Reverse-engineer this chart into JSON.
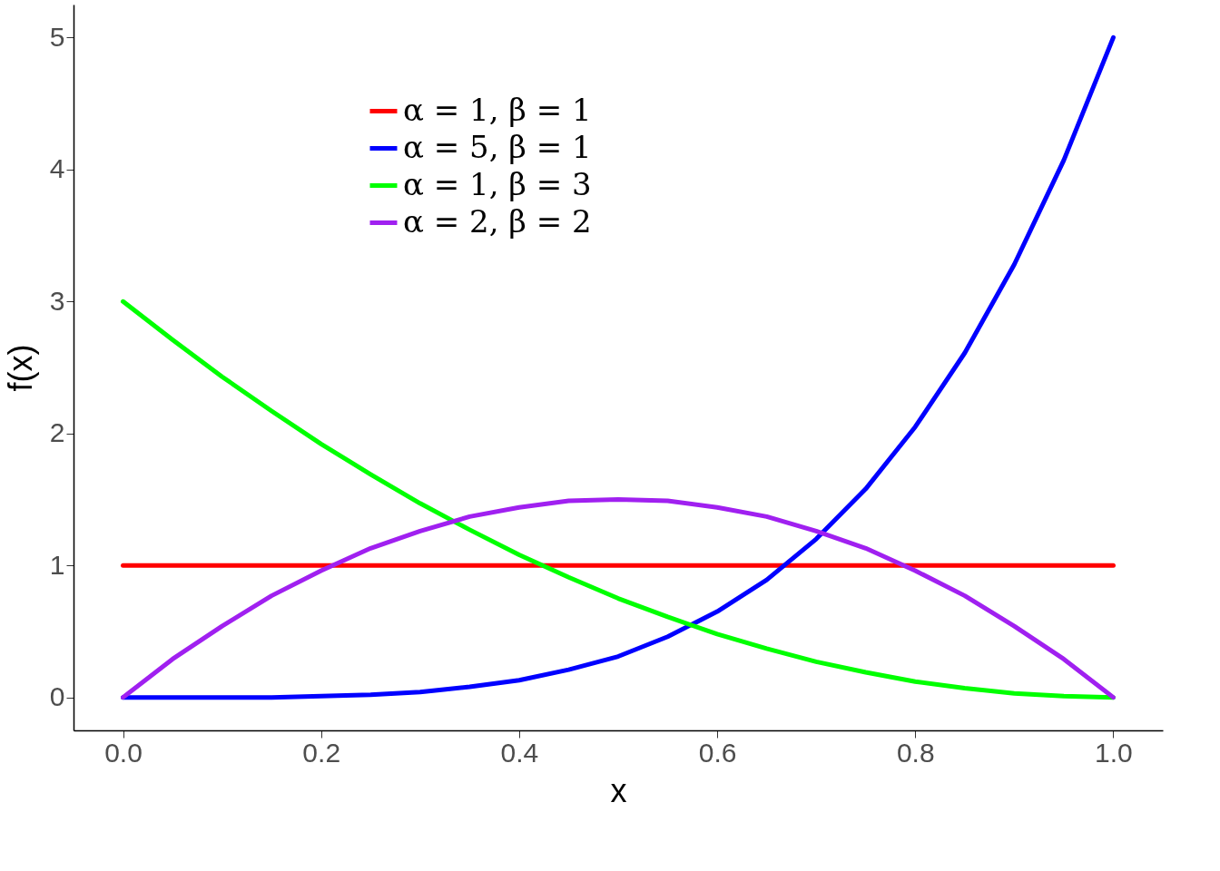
{
  "chart_data": {
    "type": "line",
    "xlabel": "x",
    "ylabel": "f(x)",
    "legend": "top",
    "x": [
      0,
      0.05,
      0.1,
      0.15,
      0.2,
      0.25,
      0.3,
      0.35,
      0.4,
      0.45,
      0.5,
      0.55,
      0.6,
      0.65,
      0.7,
      0.75,
      0.8,
      0.85,
      0.9,
      0.95,
      1
    ],
    "xlim": [
      -0.05,
      1.05
    ],
    "ylim": [
      -0.25,
      5.25
    ],
    "xticks": [
      {
        "value": 0,
        "label": "0.0"
      },
      {
        "value": 0.2,
        "label": "0.2"
      },
      {
        "value": 0.4,
        "label": "0.4"
      },
      {
        "value": 0.6,
        "label": "0.6"
      },
      {
        "value": 0.8,
        "label": "0.8"
      },
      {
        "value": 1,
        "label": "1.0"
      }
    ],
    "yticks": [
      0,
      1,
      2,
      3,
      4,
      5
    ],
    "series": [
      {
        "name": "α = 1, β = 1",
        "color": "#ff0000",
        "values": [
          1,
          1,
          1,
          1,
          1,
          1,
          1,
          1,
          1,
          1,
          1,
          1,
          1,
          1,
          1,
          1,
          1,
          1,
          1,
          1,
          1
        ]
      },
      {
        "name": "α = 5, β = 1",
        "color": "#0000ff",
        "values": [
          0,
          0,
          0,
          0,
          0.01,
          0.02,
          0.04,
          0.08,
          0.13,
          0.21,
          0.31,
          0.46,
          0.65,
          0.89,
          1.2,
          1.58,
          2.05,
          2.61,
          3.28,
          4.07,
          5
        ]
      },
      {
        "name": "α = 1, β = 3",
        "color": "#00ff00",
        "values": [
          3,
          2.71,
          2.43,
          2.17,
          1.92,
          1.69,
          1.47,
          1.27,
          1.08,
          0.91,
          0.75,
          0.61,
          0.48,
          0.37,
          0.27,
          0.19,
          0.12,
          0.07,
          0.03,
          0.01,
          0
        ]
      },
      {
        "name": "α = 2, β = 2",
        "color": "#a020f0",
        "values": [
          0,
          0.29,
          0.54,
          0.77,
          0.96,
          1.13,
          1.26,
          1.37,
          1.44,
          1.49,
          1.5,
          1.49,
          1.44,
          1.37,
          1.26,
          1.13,
          0.96,
          0.77,
          0.54,
          0.29,
          0
        ]
      }
    ]
  }
}
